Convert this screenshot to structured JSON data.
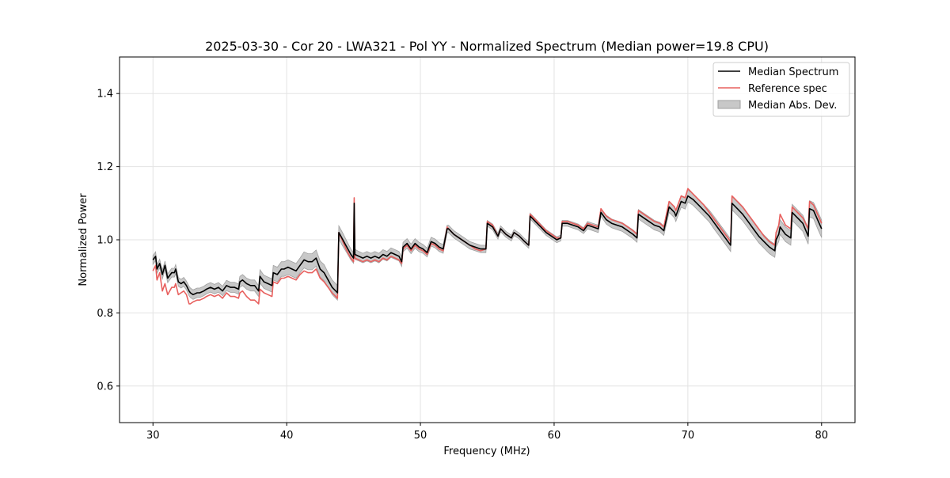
{
  "chart_data": {
    "type": "line",
    "title": "2025-03-30 - Cor 20 - LWA321 - Pol YY - Normalized Spectrum (Median power=19.8 CPU)",
    "xlabel": "Frequency (MHz)",
    "ylabel": "Normalized Power",
    "xlim": [
      27.5,
      82.5
    ],
    "ylim": [
      0.5,
      1.5
    ],
    "xticks": [
      30,
      40,
      50,
      60,
      70,
      80
    ],
    "yticks": [
      0.6,
      0.8,
      1.0,
      1.2,
      1.4
    ],
    "xtick_labels": [
      "30",
      "40",
      "50",
      "60",
      "70",
      "80"
    ],
    "ytick_labels": [
      "0.6",
      "0.8",
      "1.0",
      "1.2",
      "1.4"
    ],
    "grid": true,
    "legend_position": "top-right",
    "legend": [
      "Median Spectrum",
      "Reference spec",
      "Median Abs. Dev."
    ],
    "colors": {
      "median": "#000000",
      "reference": "#e8605e",
      "mad_fill": "#c8c8c8",
      "mad_edge": "#a0a0a0",
      "grid": "#e3e3e3"
    },
    "series": [
      {
        "name": "Median Spectrum",
        "x": [
          30.0,
          30.2,
          30.3,
          30.5,
          30.7,
          30.9,
          31.1,
          31.4,
          31.6,
          31.7,
          31.9,
          32.1,
          32.3,
          32.5,
          32.7,
          32.8,
          33.0,
          33.3,
          33.5,
          33.8,
          34.0,
          34.3,
          34.6,
          34.9,
          35.2,
          35.5,
          35.8,
          36.1,
          36.4,
          36.5,
          36.7,
          37.0,
          37.3,
          37.6,
          37.9,
          38.0,
          38.3,
          38.6,
          38.9,
          39.0,
          39.3,
          39.6,
          39.8,
          40.1,
          40.4,
          40.7,
          41.0,
          41.3,
          41.6,
          41.9,
          42.2,
          42.5,
          42.8,
          43.1,
          43.4,
          43.8,
          43.9,
          44.2,
          44.5,
          44.8,
          45.0,
          45.05,
          45.1,
          45.4,
          45.7,
          46.0,
          46.3,
          46.6,
          46.9,
          47.2,
          47.5,
          47.8,
          48.1,
          48.4,
          48.6,
          48.7,
          49.0,
          49.3,
          49.6,
          49.9,
          50.2,
          50.5,
          50.8,
          51.1,
          51.4,
          51.7,
          52.0,
          52.1,
          52.5,
          52.9,
          53.3,
          53.7,
          54.1,
          54.5,
          54.9,
          55.0,
          55.4,
          55.8,
          56.0,
          56.4,
          56.8,
          57.0,
          57.4,
          57.8,
          58.1,
          58.2,
          58.6,
          59.0,
          59.4,
          59.8,
          60.2,
          60.5,
          60.6,
          61.0,
          61.4,
          61.8,
          62.2,
          62.5,
          62.9,
          63.3,
          63.5,
          63.9,
          64.3,
          64.7,
          65.1,
          65.5,
          65.9,
          66.2,
          66.3,
          66.7,
          67.1,
          67.5,
          67.9,
          68.2,
          68.6,
          69.0,
          69.1,
          69.5,
          69.8,
          70.0,
          70.4,
          70.8,
          71.2,
          71.6,
          72.0,
          72.4,
          72.8,
          73.2,
          73.3,
          73.7,
          74.1,
          74.5,
          74.9,
          75.3,
          75.7,
          76.1,
          76.5,
          76.6,
          76.8,
          76.9,
          77.1,
          77.3,
          77.5,
          77.7,
          77.8,
          78.2,
          78.6,
          79.0,
          79.1,
          79.4,
          79.7,
          80.0
        ],
        "values": [
          0.945,
          0.955,
          0.92,
          0.935,
          0.905,
          0.93,
          0.895,
          0.91,
          0.91,
          0.92,
          0.885,
          0.88,
          0.885,
          0.875,
          0.86,
          0.855,
          0.85,
          0.855,
          0.855,
          0.86,
          0.865,
          0.87,
          0.865,
          0.87,
          0.86,
          0.875,
          0.87,
          0.87,
          0.865,
          0.885,
          0.89,
          0.88,
          0.875,
          0.875,
          0.86,
          0.9,
          0.885,
          0.88,
          0.875,
          0.91,
          0.905,
          0.92,
          0.92,
          0.925,
          0.92,
          0.915,
          0.93,
          0.945,
          0.94,
          0.94,
          0.95,
          0.92,
          0.91,
          0.89,
          0.87,
          0.855,
          1.02,
          1.0,
          0.98,
          0.96,
          0.95,
          1.1,
          0.96,
          0.955,
          0.95,
          0.955,
          0.95,
          0.955,
          0.95,
          0.96,
          0.955,
          0.965,
          0.96,
          0.955,
          0.94,
          0.98,
          0.99,
          0.975,
          0.99,
          0.98,
          0.975,
          0.965,
          0.995,
          0.99,
          0.98,
          0.975,
          1.03,
          1.03,
          1.015,
          1.005,
          0.995,
          0.985,
          0.98,
          0.975,
          0.975,
          1.045,
          1.035,
          1.01,
          1.03,
          1.015,
          1.005,
          1.02,
          1.01,
          0.995,
          0.985,
          1.065,
          1.05,
          1.035,
          1.02,
          1.01,
          1.0,
          1.005,
          1.045,
          1.045,
          1.04,
          1.035,
          1.025,
          1.04,
          1.035,
          1.03,
          1.075,
          1.055,
          1.045,
          1.04,
          1.035,
          1.025,
          1.015,
          1.005,
          1.07,
          1.06,
          1.05,
          1.04,
          1.035,
          1.025,
          1.09,
          1.075,
          1.065,
          1.105,
          1.1,
          1.12,
          1.11,
          1.095,
          1.08,
          1.065,
          1.045,
          1.025,
          1.005,
          0.985,
          1.1,
          1.085,
          1.07,
          1.05,
          1.03,
          1.01,
          0.995,
          0.98,
          0.97,
          1.0,
          1.015,
          1.035,
          1.025,
          1.015,
          1.01,
          1.005,
          1.075,
          1.06,
          1.045,
          1.01,
          1.085,
          1.08,
          1.055,
          1.03
        ]
      },
      {
        "name": "Reference spec",
        "x": [
          30.0,
          30.2,
          30.3,
          30.5,
          30.7,
          30.9,
          31.1,
          31.4,
          31.6,
          31.7,
          31.9,
          32.1,
          32.3,
          32.5,
          32.7,
          32.8,
          33.0,
          33.3,
          33.5,
          33.8,
          34.0,
          34.3,
          34.6,
          34.9,
          35.2,
          35.5,
          35.8,
          36.1,
          36.4,
          36.5,
          36.7,
          37.0,
          37.3,
          37.6,
          37.9,
          38.0,
          38.3,
          38.6,
          38.9,
          39.0,
          39.3,
          39.6,
          39.8,
          40.1,
          40.4,
          40.7,
          41.0,
          41.3,
          41.6,
          41.9,
          42.2,
          42.5,
          42.8,
          43.1,
          43.4,
          43.8,
          43.9,
          44.2,
          44.5,
          44.8,
          45.0,
          45.05,
          45.1,
          45.4,
          45.7,
          46.0,
          46.3,
          46.6,
          46.9,
          47.2,
          47.5,
          47.8,
          48.1,
          48.4,
          48.6,
          48.7,
          49.0,
          49.3,
          49.6,
          49.9,
          50.2,
          50.5,
          50.8,
          51.1,
          51.4,
          51.7,
          52.0,
          52.1,
          52.5,
          52.9,
          53.3,
          53.7,
          54.1,
          54.5,
          54.9,
          55.0,
          55.4,
          55.8,
          56.0,
          56.4,
          56.8,
          57.0,
          57.4,
          57.8,
          58.1,
          58.2,
          58.6,
          59.0,
          59.4,
          59.8,
          60.2,
          60.5,
          60.6,
          61.0,
          61.4,
          61.8,
          62.2,
          62.5,
          62.9,
          63.3,
          63.5,
          63.9,
          64.3,
          64.7,
          65.1,
          65.5,
          65.9,
          66.2,
          66.3,
          66.7,
          67.1,
          67.5,
          67.9,
          68.2,
          68.6,
          69.0,
          69.1,
          69.5,
          69.8,
          70.0,
          70.4,
          70.8,
          71.2,
          71.6,
          72.0,
          72.4,
          72.8,
          73.2,
          73.3,
          73.7,
          74.1,
          74.5,
          74.9,
          75.3,
          75.7,
          76.1,
          76.5,
          76.6,
          76.8,
          76.9,
          77.1,
          77.3,
          77.5,
          77.7,
          77.8,
          78.2,
          78.6,
          79.0,
          79.1,
          79.4,
          79.7,
          80.0
        ],
        "values": [
          0.915,
          0.93,
          0.89,
          0.91,
          0.86,
          0.88,
          0.85,
          0.87,
          0.87,
          0.88,
          0.85,
          0.855,
          0.86,
          0.85,
          0.825,
          0.825,
          0.83,
          0.835,
          0.835,
          0.84,
          0.845,
          0.85,
          0.845,
          0.85,
          0.84,
          0.855,
          0.845,
          0.845,
          0.84,
          0.855,
          0.86,
          0.845,
          0.835,
          0.835,
          0.825,
          0.865,
          0.855,
          0.85,
          0.845,
          0.885,
          0.88,
          0.895,
          0.895,
          0.9,
          0.895,
          0.89,
          0.905,
          0.915,
          0.91,
          0.91,
          0.92,
          0.895,
          0.885,
          0.87,
          0.855,
          0.84,
          1.02,
          0.995,
          0.97,
          0.95,
          0.94,
          1.115,
          0.95,
          0.945,
          0.94,
          0.945,
          0.94,
          0.945,
          0.94,
          0.95,
          0.945,
          0.955,
          0.95,
          0.945,
          0.935,
          0.975,
          0.985,
          0.97,
          0.985,
          0.975,
          0.97,
          0.96,
          0.99,
          0.985,
          0.975,
          0.97,
          1.035,
          1.03,
          1.015,
          1.005,
          0.995,
          0.985,
          0.975,
          0.97,
          0.975,
          1.05,
          1.04,
          1.01,
          1.03,
          1.015,
          1.005,
          1.02,
          1.01,
          0.995,
          0.985,
          1.07,
          1.055,
          1.04,
          1.025,
          1.015,
          1.005,
          1.005,
          1.05,
          1.05,
          1.045,
          1.04,
          1.03,
          1.045,
          1.04,
          1.035,
          1.085,
          1.065,
          1.055,
          1.05,
          1.045,
          1.035,
          1.025,
          1.015,
          1.08,
          1.07,
          1.06,
          1.05,
          1.045,
          1.035,
          1.105,
          1.09,
          1.08,
          1.12,
          1.115,
          1.14,
          1.125,
          1.11,
          1.095,
          1.075,
          1.055,
          1.035,
          1.015,
          0.995,
          1.12,
          1.105,
          1.09,
          1.07,
          1.05,
          1.03,
          1.01,
          0.995,
          0.985,
          1.02,
          1.04,
          1.07,
          1.055,
          1.04,
          1.035,
          1.03,
          1.09,
          1.075,
          1.06,
          1.03,
          1.105,
          1.095,
          1.07,
          1.045
        ]
      }
    ],
    "mad_band": {
      "name": "Median Abs. Dev.",
      "half_width": [
        0.012,
        0.012,
        0.012,
        0.012,
        0.012,
        0.012,
        0.012,
        0.012,
        0.012,
        0.012,
        0.012,
        0.012,
        0.012,
        0.012,
        0.013,
        0.013,
        0.013,
        0.013,
        0.013,
        0.013,
        0.013,
        0.013,
        0.013,
        0.013,
        0.013,
        0.014,
        0.014,
        0.014,
        0.014,
        0.015,
        0.015,
        0.015,
        0.015,
        0.015,
        0.015,
        0.018,
        0.018,
        0.018,
        0.018,
        0.02,
        0.02,
        0.02,
        0.02,
        0.02,
        0.02,
        0.02,
        0.02,
        0.022,
        0.022,
        0.022,
        0.022,
        0.022,
        0.022,
        0.02,
        0.02,
        0.02,
        0.018,
        0.018,
        0.016,
        0.015,
        0.014,
        0.01,
        0.014,
        0.013,
        0.013,
        0.013,
        0.013,
        0.013,
        0.013,
        0.013,
        0.013,
        0.013,
        0.013,
        0.013,
        0.013,
        0.013,
        0.013,
        0.013,
        0.013,
        0.013,
        0.012,
        0.012,
        0.012,
        0.012,
        0.012,
        0.012,
        0.01,
        0.01,
        0.01,
        0.01,
        0.01,
        0.01,
        0.01,
        0.01,
        0.01,
        0.008,
        0.008,
        0.008,
        0.008,
        0.008,
        0.008,
        0.008,
        0.008,
        0.008,
        0.008,
        0.008,
        0.008,
        0.008,
        0.008,
        0.008,
        0.008,
        0.008,
        0.008,
        0.008,
        0.008,
        0.008,
        0.008,
        0.01,
        0.01,
        0.01,
        0.01,
        0.012,
        0.012,
        0.012,
        0.012,
        0.012,
        0.012,
        0.012,
        0.013,
        0.013,
        0.013,
        0.013,
        0.013,
        0.013,
        0.015,
        0.015,
        0.015,
        0.016,
        0.016,
        0.016,
        0.016,
        0.016,
        0.016,
        0.016,
        0.017,
        0.017,
        0.017,
        0.017,
        0.018,
        0.018,
        0.018,
        0.018,
        0.018,
        0.018,
        0.018,
        0.018,
        0.018,
        0.02,
        0.02,
        0.02,
        0.02,
        0.02,
        0.02,
        0.02,
        0.022,
        0.022,
        0.022,
        0.022,
        0.022,
        0.022,
        0.024,
        0.024
      ]
    }
  }
}
